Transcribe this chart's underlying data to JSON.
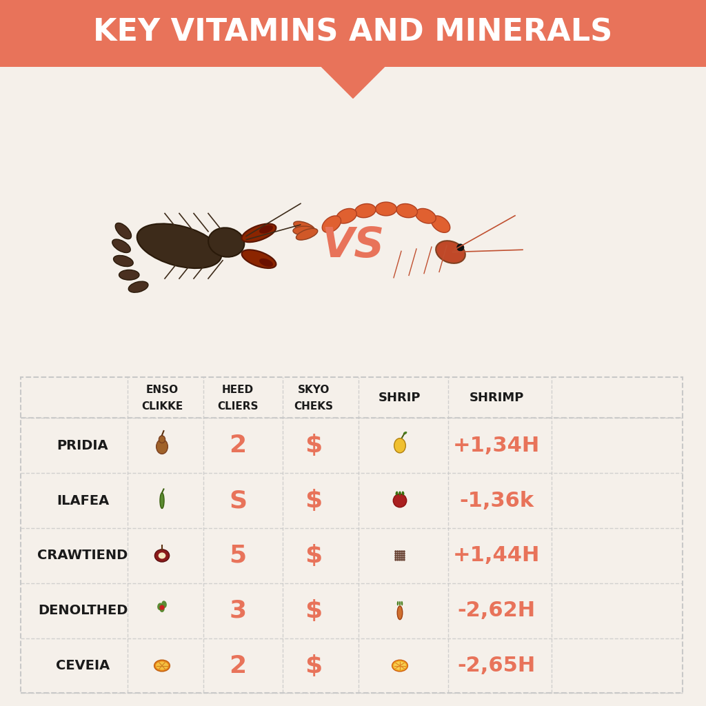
{
  "title": "KEY VITAMINS AND MINERALS",
  "title_bg_color": "#E8735A",
  "title_text_color": "#FFFFFF",
  "vs_color": "#E8735A",
  "background_color": "#F5F0EA",
  "row_labels": [
    "PRIDIA",
    "ILAFEA",
    "CRAWTIEND",
    "DENOLTHED",
    "CEVEIA"
  ],
  "col_headers_line1": [
    "ENSO",
    "HEED",
    "SKYO",
    "SHRIP",
    "SHRIMP"
  ],
  "col_headers_line2": [
    "CLIKKE",
    "CLIERS",
    "CHEKS",
    "",
    ""
  ],
  "crawfish_values": [
    "2",
    "S",
    "5",
    "3",
    "2"
  ],
  "shrimp_values": [
    "+1,34H",
    "-1,36k",
    "+1,44H",
    "-2,62H",
    "-2,65H"
  ],
  "value_color": "#E8735A",
  "header_text_color": "#1A1A1A",
  "row_label_color": "#1A1A1A",
  "grid_line_color": "#C8C8C8",
  "dollar_signs": [
    "$",
    "$",
    "$",
    "$",
    "$"
  ],
  "crawfish_body_color": "#3D2B1A",
  "crawfish_claw_color": "#8B2500",
  "shrimp_color": "#E06030",
  "crawfish_food_colors": [
    "#A0622A",
    "#5A8A30",
    "#8B1A1A",
    "#CC4444",
    "#E8851A"
  ],
  "shrimp_food_colors": [
    "#F0C030",
    "#AA2020",
    "#5A3020",
    "#D07030",
    "#F0A820"
  ]
}
